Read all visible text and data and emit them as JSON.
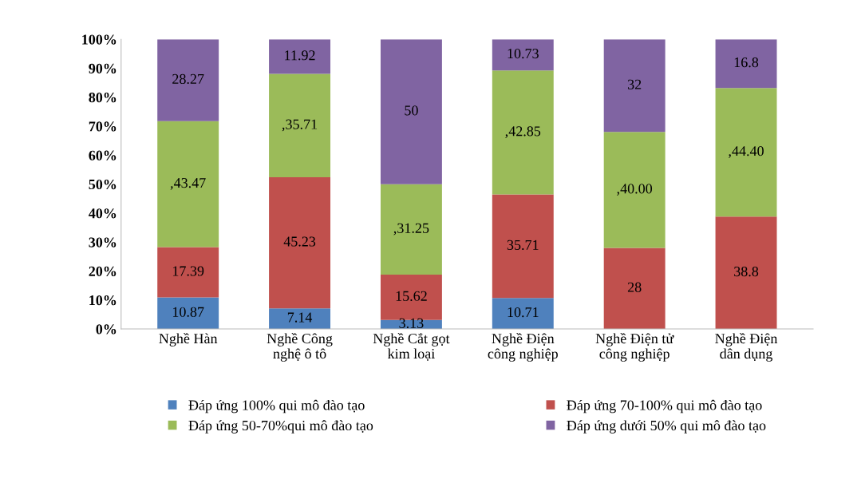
{
  "chart_data": {
    "type": "bar",
    "stacked": true,
    "categories": [
      "Nghề Hàn",
      "Nghề Công\nnghệ ô tô",
      "Nghề Cắt gọt\nkim loại",
      "Nghề Điện\ncông nghiệp",
      "Nghề Điện tử\ncông nghiệp",
      "Nghề Điện\ndân dụng"
    ],
    "series": [
      {
        "name": "Đáp ứng 100% qui mô đào tạo",
        "color": "#4f81bd",
        "values": [
          10.87,
          7.14,
          3.13,
          10.71,
          0,
          0
        ],
        "value_labels": [
          "10.87",
          "7.14",
          "3.13",
          "10.71",
          null,
          null
        ]
      },
      {
        "name": "Đáp ứng 70-100% qui mô đào tạo",
        "color": "#c0504d",
        "values": [
          17.39,
          45.23,
          15.62,
          35.71,
          28,
          38.8
        ],
        "value_labels": [
          "17.39",
          "45.23",
          "15.62",
          "35.71",
          "28",
          "38.8"
        ]
      },
      {
        "name": "Đáp ứng 50-70%qui mô đào tạo",
        "color": "#9bbb59",
        "values": [
          43.47,
          35.71,
          31.25,
          42.85,
          40.0,
          44.4
        ],
        "value_labels": [
          ",43.47",
          ",35.71",
          ",31.25",
          ",42.85",
          ",40.00",
          ",44.40"
        ]
      },
      {
        "name": "Đáp ứng dưới 50% qui mô đào tạo",
        "color": "#8064a2",
        "values": [
          28.27,
          11.92,
          50,
          10.73,
          32,
          16.8
        ],
        "value_labels": [
          "28.27",
          "11.92",
          "50",
          "10.73",
          "32",
          "16.8"
        ]
      }
    ],
    "ylim": [
      0,
      100
    ],
    "yticks": [
      {
        "value": 0,
        "label": "0%"
      },
      {
        "value": 10,
        "label": "10%"
      },
      {
        "value": 20,
        "label": "20%"
      },
      {
        "value": 30,
        "label": "30%"
      },
      {
        "value": 40,
        "label": "40%"
      },
      {
        "value": 50,
        "label": "50%"
      },
      {
        "value": 60,
        "label": "60%"
      },
      {
        "value": 70,
        "label": "70%"
      },
      {
        "value": 80,
        "label": "80%"
      },
      {
        "value": 90,
        "label": "90%"
      },
      {
        "value": 100,
        "label": "100%"
      }
    ],
    "grid": false,
    "legend": "bottom"
  }
}
